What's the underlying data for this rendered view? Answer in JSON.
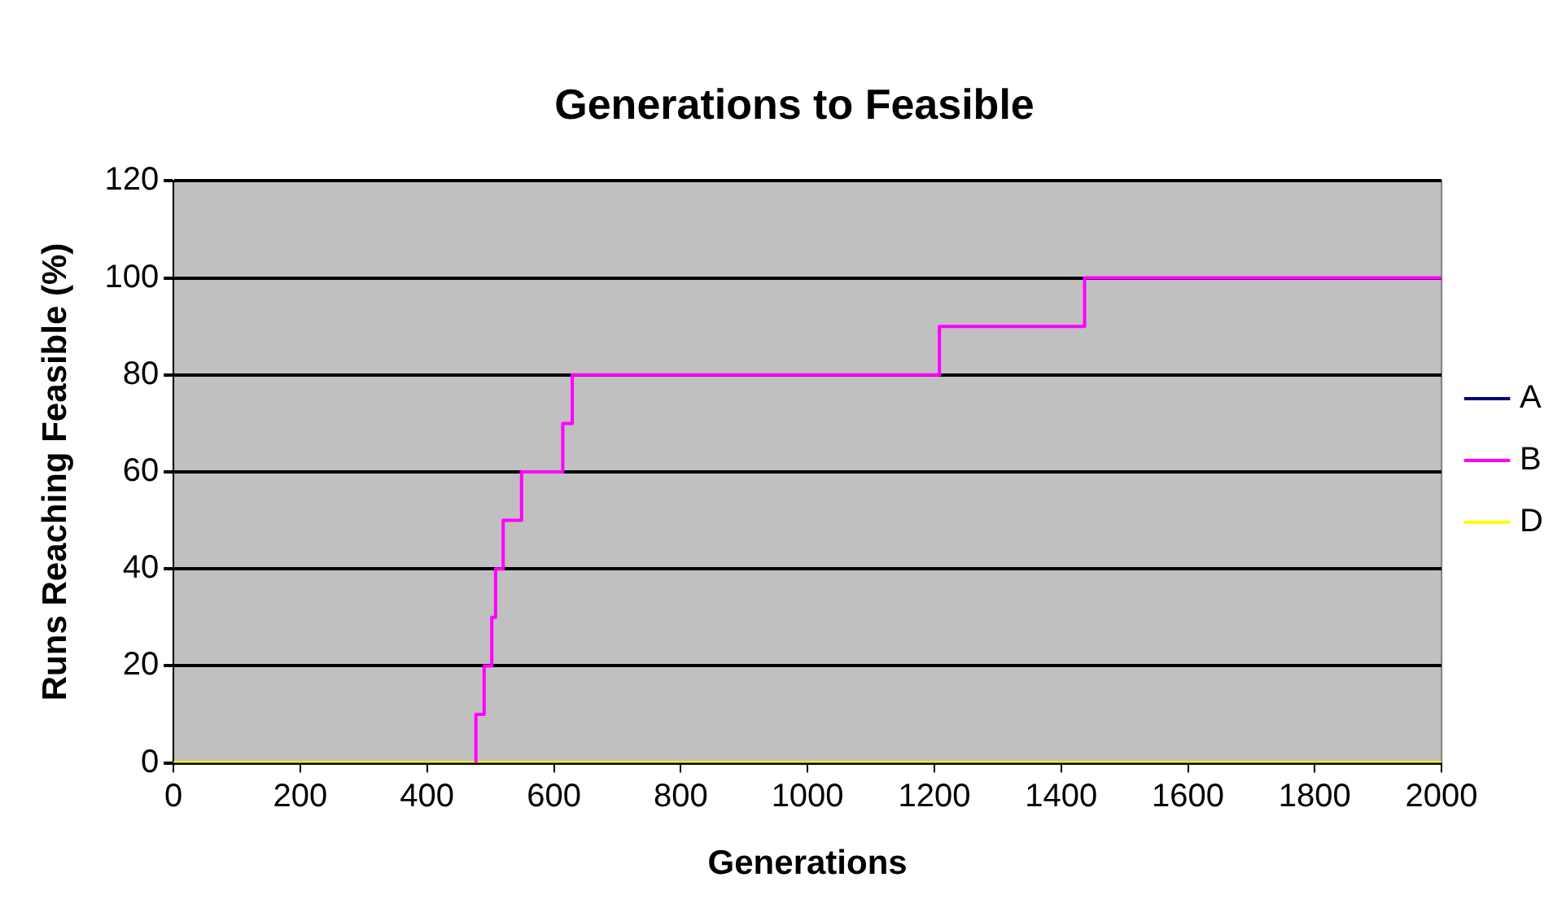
{
  "chart_data": {
    "type": "step",
    "title": "Generations to Feasible",
    "xlabel": "Generations",
    "ylabel": "Runs Reaching Feasible (%)",
    "xlim": [
      0,
      2000
    ],
    "xticks": [
      0,
      200,
      400,
      600,
      800,
      1000,
      1200,
      1400,
      1600,
      1800,
      2000
    ],
    "ylim": [
      0,
      120
    ],
    "yticks": [
      0,
      20,
      40,
      60,
      80,
      100,
      120
    ],
    "grid": "y",
    "legend": "right",
    "marker": "none",
    "series": [
      {
        "name": "A",
        "color": "#000080"
      },
      {
        "name": "B",
        "color": "#ff00ff",
        "x": [
          477,
          477,
          490,
          502,
          508,
          520,
          549,
          614,
          629,
          1208,
          1437,
          2000
        ],
        "values": [
          0,
          10,
          20,
          30,
          40,
          50,
          60,
          70,
          80,
          90,
          100,
          100
        ]
      },
      {
        "name": "D",
        "color": "#ffff00",
        "x": [
          0,
          2000
        ],
        "values": [
          0,
          0
        ]
      }
    ]
  }
}
